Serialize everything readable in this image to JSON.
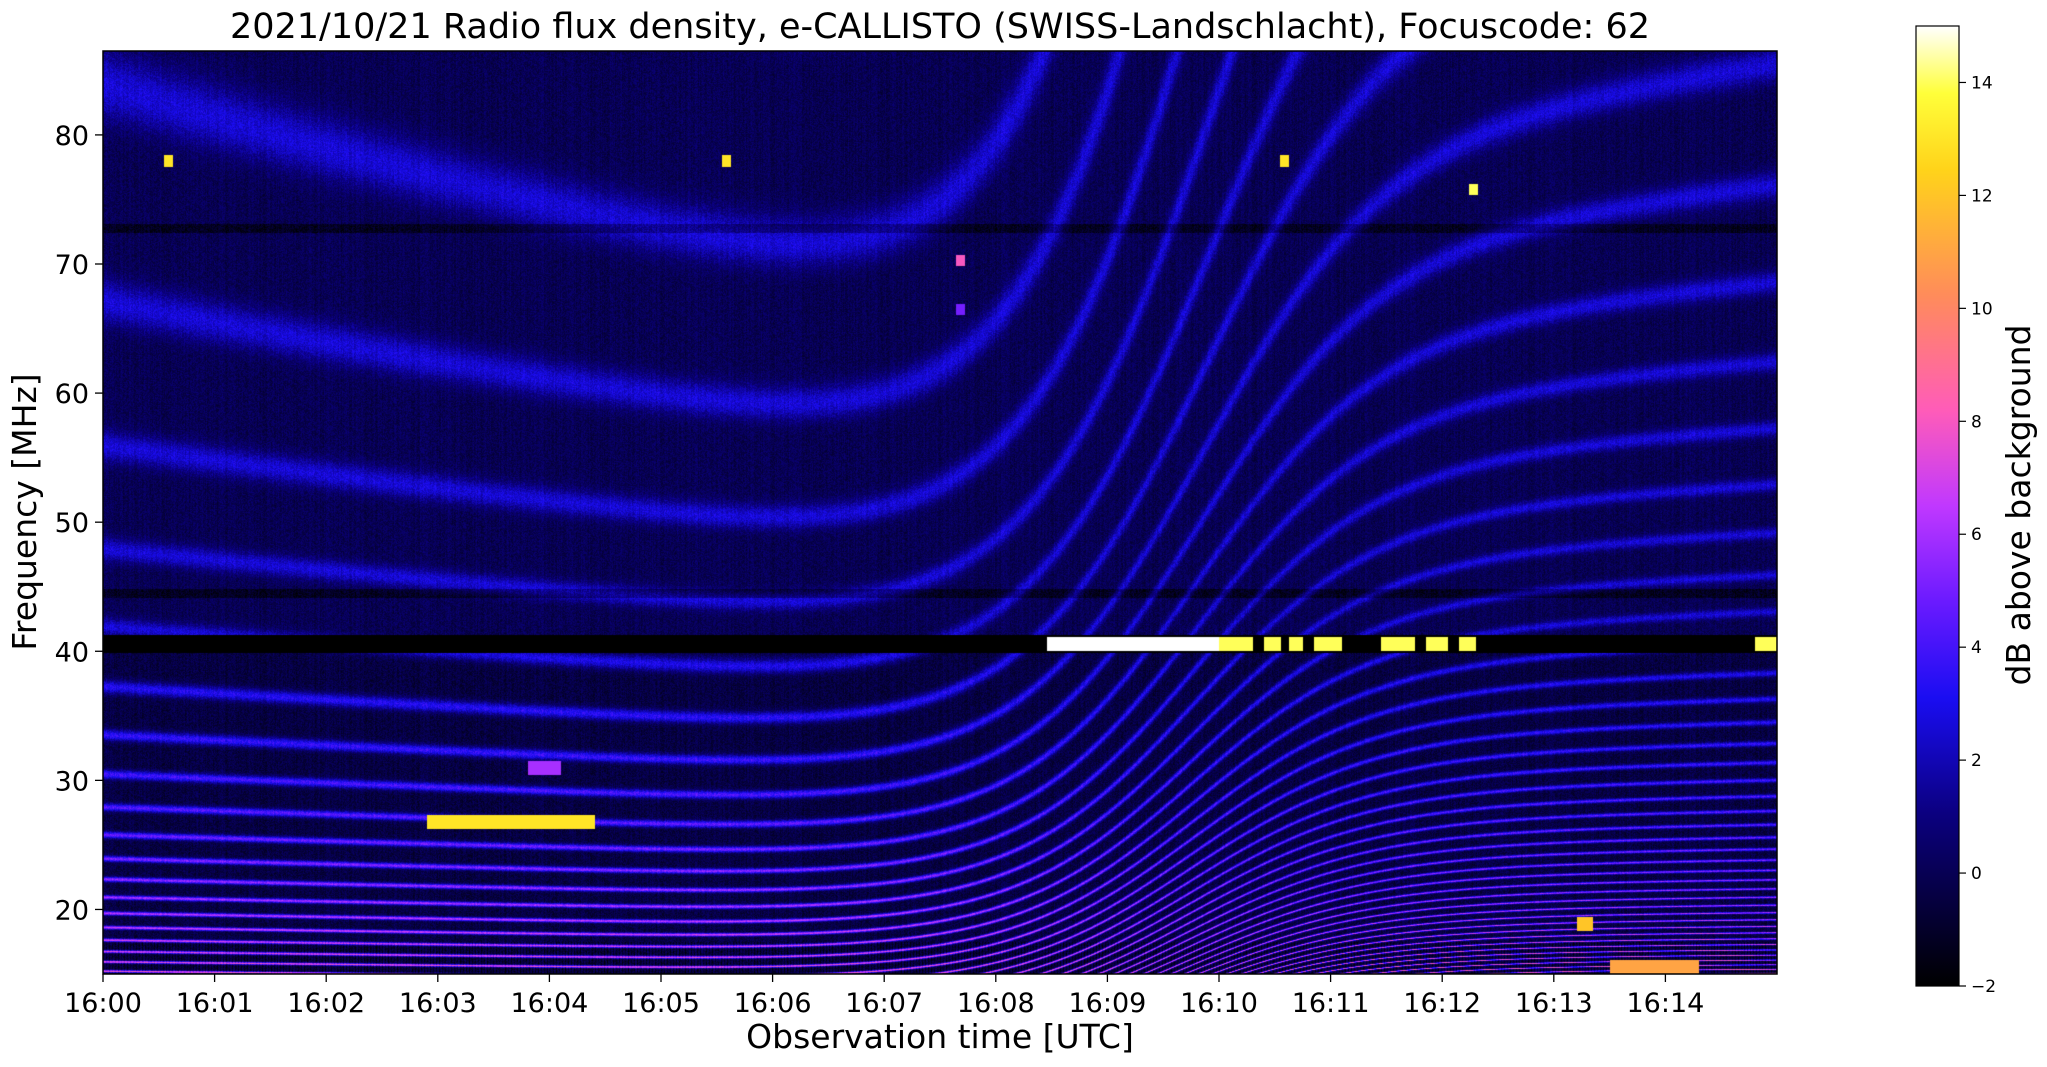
{
  "chart_data": {
    "type": "heatmap",
    "title": "2021/10/21  Radio flux density, e-CALLISTO (SWISS-Landschlacht), Focuscode: 62",
    "xlabel": "Observation time [UTC]",
    "ylabel": "Frequency [MHz]",
    "x_ticks": [
      "16:00",
      "16:01",
      "16:02",
      "16:03",
      "16:04",
      "16:05",
      "16:06",
      "16:07",
      "16:08",
      "16:09",
      "16:10",
      "16:11",
      "16:12",
      "16:13",
      "16:14"
    ],
    "xlim": [
      0,
      15
    ],
    "y_ticks": [
      20,
      30,
      40,
      50,
      60,
      70,
      80
    ],
    "ylim": [
      15,
      86.5
    ],
    "colorbar": {
      "label": "dB above background",
      "range": [
        -2,
        15
      ],
      "ticks": [
        -2,
        0,
        2,
        4,
        6,
        8,
        10,
        12,
        14
      ],
      "colormap": "gnuplot2"
    },
    "features": {
      "dark_band_mhz": 40.6,
      "dark_thin_bands_mhz": [
        72.8,
        44.5
      ],
      "pattern_center_minute": 9.6,
      "bright_bursts": [
        {
          "start_min": 2.9,
          "end_min": 4.4,
          "freq_mhz": 26.8,
          "level": 13
        },
        {
          "start_min": 3.8,
          "end_min": 4.1,
          "freq_mhz": 31.0,
          "level": 6
        },
        {
          "start_min": 8.45,
          "end_min": 10.0,
          "freq_mhz": 40.6,
          "level": 15
        },
        {
          "start_min": 10.0,
          "end_min": 10.3,
          "freq_mhz": 40.6,
          "level": 14
        },
        {
          "start_min": 10.4,
          "end_min": 10.55,
          "freq_mhz": 40.6,
          "level": 14
        },
        {
          "start_min": 10.62,
          "end_min": 10.75,
          "freq_mhz": 40.6,
          "level": 14
        },
        {
          "start_min": 10.85,
          "end_min": 11.1,
          "freq_mhz": 40.6,
          "level": 14
        },
        {
          "start_min": 11.45,
          "end_min": 11.75,
          "freq_mhz": 40.6,
          "level": 14
        },
        {
          "start_min": 11.85,
          "end_min": 12.05,
          "freq_mhz": 40.6,
          "level": 14
        },
        {
          "start_min": 12.15,
          "end_min": 12.3,
          "freq_mhz": 40.6,
          "level": 14
        },
        {
          "start_min": 14.8,
          "end_min": 15.0,
          "freq_mhz": 40.6,
          "level": 14
        },
        {
          "start_min": 13.2,
          "end_min": 13.35,
          "freq_mhz": 18.9,
          "level": 12
        },
        {
          "start_min": 13.5,
          "end_min": 14.3,
          "freq_mhz": 15.6,
          "level": 11
        }
      ],
      "hot_spots": [
        {
          "minute": 0.58,
          "freq_mhz": 78.0,
          "level": 13
        },
        {
          "minute": 5.58,
          "freq_mhz": 78.0,
          "level": 13
        },
        {
          "minute": 10.58,
          "freq_mhz": 78.0,
          "level": 13
        },
        {
          "minute": 12.28,
          "freq_mhz": 75.8,
          "level": 14
        },
        {
          "minute": 7.68,
          "freq_mhz": 70.3,
          "level": 8
        },
        {
          "minute": 7.68,
          "freq_mhz": 66.5,
          "level": 5
        }
      ]
    }
  }
}
